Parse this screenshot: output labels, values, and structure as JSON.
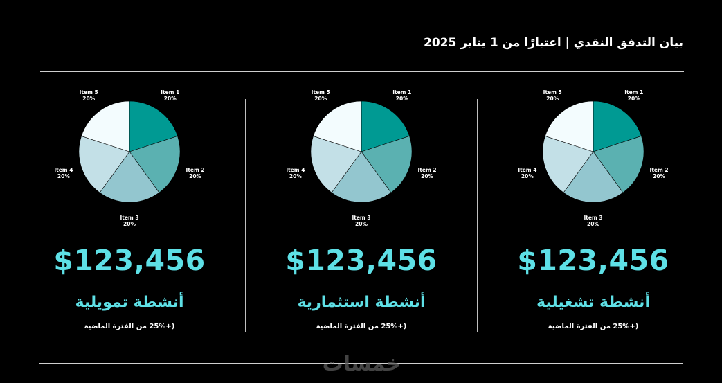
{
  "header": {
    "title": "بيان التدفق النقدي | اعتبارًا من 1 يناير 2025"
  },
  "panels": [
    {
      "amount": "$123,456",
      "label": "أنشطة تمويلية",
      "change": "(+25% من الفترة الماضية"
    },
    {
      "amount": "$123,456",
      "label": "أنشطة استثمارية",
      "change": "(+25% من الفترة الماضية"
    },
    {
      "amount": "$123,456",
      "label": "أنشطة تشغيلية",
      "change": "(+25% من الفترة الماضية"
    }
  ],
  "chart_data": [
    {
      "type": "pie",
      "categories": [
        "Item 1",
        "Item 2",
        "Item 3",
        "Item 4",
        "Item 5"
      ],
      "values": [
        20,
        20,
        20,
        20,
        20
      ],
      "data_labels": [
        "20%",
        "20%",
        "20%",
        "20%",
        "20%"
      ],
      "colors": [
        "#009a93",
        "#5bb1b1",
        "#93c6cf",
        "#c3e0e7",
        "#f3fcfe"
      ]
    },
    {
      "type": "pie",
      "categories": [
        "Item 1",
        "Item 2",
        "Item 3",
        "Item 4",
        "Item 5"
      ],
      "values": [
        20,
        20,
        20,
        20,
        20
      ],
      "data_labels": [
        "20%",
        "20%",
        "20%",
        "20%",
        "20%"
      ],
      "colors": [
        "#009a93",
        "#5bb1b1",
        "#93c6cf",
        "#c3e0e7",
        "#f3fcfe"
      ]
    },
    {
      "type": "pie",
      "categories": [
        "Item 1",
        "Item 2",
        "Item 3",
        "Item 4",
        "Item 5"
      ],
      "values": [
        20,
        20,
        20,
        20,
        20
      ],
      "data_labels": [
        "20%",
        "20%",
        "20%",
        "20%",
        "20%"
      ],
      "colors": [
        "#009a93",
        "#5bb1b1",
        "#93c6cf",
        "#c3e0e7",
        "#f3fcfe"
      ]
    }
  ],
  "watermark": {
    "text": "خمسات"
  }
}
